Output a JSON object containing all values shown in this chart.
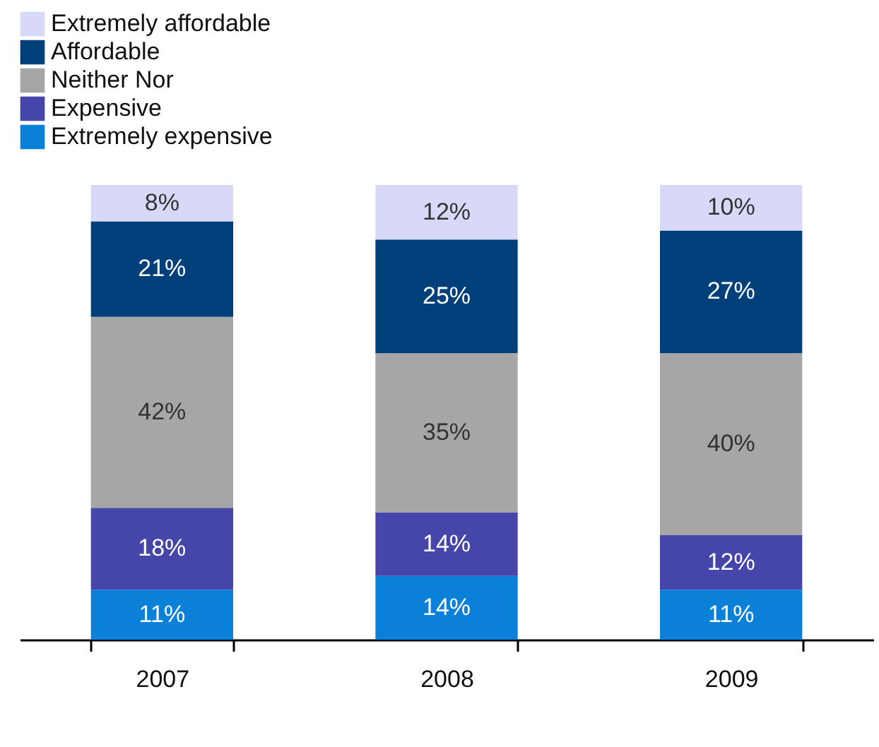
{
  "chart_data": {
    "type": "bar",
    "stacked": true,
    "legend": "top left",
    "categories": [
      "2007",
      "2008",
      "2009"
    ],
    "series": [
      {
        "name": "Extremely expensive",
        "color": "#0a80d8",
        "values": [
          11,
          14,
          11
        ],
        "value_labels": [
          "11%",
          "14%",
          "11%"
        ]
      },
      {
        "name": "Expensive",
        "color": "#4646aa",
        "values": [
          18,
          14,
          12
        ],
        "value_labels": [
          "18%",
          "14%",
          "12%"
        ]
      },
      {
        "name": "Neither Nor",
        "color": "#a6a6a6",
        "values": [
          42,
          35,
          40
        ],
        "value_labels": [
          "42%",
          "35%",
          "40%"
        ]
      },
      {
        "name": "Affordable",
        "color": "#00407a",
        "values": [
          21,
          25,
          27
        ],
        "value_labels": [
          "21%",
          "25%",
          "27%"
        ]
      },
      {
        "name": "Extremely affordable",
        "color": "#d8d8f8",
        "values": [
          8,
          12,
          10
        ],
        "value_labels": [
          "8%",
          "12%",
          "10%"
        ]
      }
    ]
  }
}
